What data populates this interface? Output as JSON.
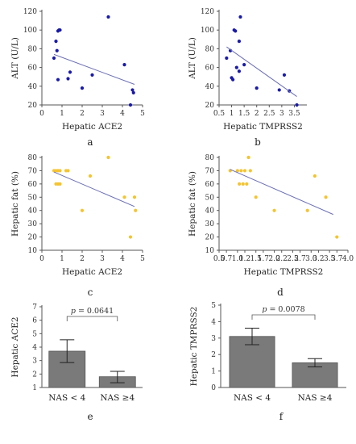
{
  "colors": {
    "blue": "#1a1aa8",
    "yellow": "#f4c430",
    "trend": "#6b6fb5",
    "bar": "#7a7a7a"
  },
  "chart_data": [
    {
      "panel": "a",
      "type": "scatter",
      "xlabel": "Hepatic ACE2",
      "ylabel": "ALT (U/L)",
      "xlim": [
        0,
        5
      ],
      "ylim": [
        20,
        120
      ],
      "xticks": [
        0,
        1,
        2,
        3,
        4,
        5
      ],
      "yticks": [
        20,
        40,
        60,
        80,
        100,
        120
      ],
      "x": [
        0.6,
        0.7,
        0.75,
        0.8,
        0.85,
        0.9,
        0.8,
        1.3,
        1.4,
        2.0,
        2.5,
        3.3,
        4.1,
        4.4,
        4.5,
        4.55
      ],
      "y": [
        70,
        88,
        78,
        99,
        100,
        100,
        47,
        48,
        55,
        38,
        52,
        114,
        63,
        20,
        36,
        33
      ],
      "trend": [
        [
          0.6,
          74
        ],
        [
          4.6,
          42
        ]
      ]
    },
    {
      "panel": "b",
      "type": "scatter",
      "xlabel": "Hepatic TMPRSS2",
      "ylabel": "ALT (U/L)",
      "xlim": [
        0.5,
        4.0
      ],
      "ylim": [
        20,
        120
      ],
      "xticks": [
        0.5,
        1.0,
        1.5,
        2.0,
        2.5,
        3.0,
        3.5
      ],
      "yticks": [
        20,
        40,
        60,
        80,
        100,
        120
      ],
      "x": [
        0.8,
        0.95,
        1.0,
        1.05,
        1.1,
        1.15,
        1.2,
        1.3,
        1.3,
        1.35,
        1.5,
        2.0,
        2.9,
        3.1,
        3.3,
        3.6
      ],
      "y": [
        70,
        78,
        49,
        47,
        100,
        99,
        60,
        88,
        56,
        114,
        63,
        38,
        36,
        52,
        35,
        20
      ],
      "trend": [
        [
          0.8,
          82
        ],
        [
          3.6,
          29
        ]
      ]
    },
    {
      "panel": "c",
      "type": "scatter",
      "xlabel": "Hepatic ACE2",
      "ylabel": "Hepatic fat (%)",
      "xlim": [
        0,
        5
      ],
      "ylim": [
        10,
        80
      ],
      "xticks": [
        0,
        1,
        2,
        3,
        4,
        5
      ],
      "yticks": [
        10,
        20,
        30,
        40,
        50,
        60,
        70,
        80
      ],
      "x": [
        0.6,
        0.7,
        0.8,
        0.9,
        0.7,
        0.8,
        0.9,
        1.2,
        1.3,
        2.0,
        2.4,
        3.3,
        4.1,
        4.4,
        4.6,
        4.65
      ],
      "y": [
        70,
        70,
        70,
        70,
        60,
        60,
        60,
        70,
        70,
        40,
        66,
        80,
        50,
        20,
        50,
        40
      ],
      "trend": [
        [
          0.6,
          69
        ],
        [
          4.6,
          43
        ]
      ]
    },
    {
      "panel": "d",
      "type": "scatter",
      "xlabel": "Hepatic TMPRSS2",
      "ylabel": "Hepatic fat (%)",
      "xlim": [
        0.5,
        4.0
      ],
      "ylim": [
        10,
        80
      ],
      "xticks": [
        0.5,
        0.7,
        1.0,
        1.2,
        1.5,
        1.7,
        2.0,
        2.2,
        2.5,
        2.7,
        3.0,
        3.2,
        3.5,
        3.7,
        4.0
      ],
      "xticklabels": [
        "0.5",
        "0.7",
        "1.0",
        "1.2",
        "1.5",
        "1.7",
        "2.0",
        "2.2",
        "2.5",
        "2.7",
        "3.0",
        "3.2",
        "3.5",
        "3.7",
        "4.0"
      ],
      "yticks": [
        10,
        20,
        30,
        40,
        50,
        60,
        70,
        80
      ],
      "x": [
        0.8,
        1.0,
        1.05,
        1.1,
        1.15,
        1.2,
        1.25,
        1.3,
        1.35,
        1.5,
        2.0,
        2.9,
        3.1,
        3.4,
        3.7
      ],
      "y": [
        70,
        70,
        60,
        70,
        60,
        70,
        60,
        80,
        70,
        50,
        40,
        40,
        66,
        50,
        20
      ],
      "trend": [
        [
          0.8,
          71
        ],
        [
          3.6,
          37
        ]
      ]
    },
    {
      "panel": "e",
      "type": "bar",
      "xlabel": "",
      "ylabel": "Hepatic ACE2",
      "categories": [
        "NAS < 4",
        "NAS ≥4"
      ],
      "values": [
        3.7,
        1.8
      ],
      "err_low": [
        2.85,
        1.35
      ],
      "err_high": [
        4.55,
        2.2
      ],
      "ylim": [
        1,
        7
      ],
      "yticks": [
        1,
        2,
        3,
        4,
        5,
        6,
        7
      ],
      "ptext": "p = 0.0641"
    },
    {
      "panel": "f",
      "type": "bar",
      "xlabel": "",
      "ylabel": "Hepatic TMPRSS2",
      "categories": [
        "NAS < 4",
        "NAS ≥4"
      ],
      "values": [
        3.1,
        1.5
      ],
      "err_low": [
        2.6,
        1.25
      ],
      "err_high": [
        3.6,
        1.75
      ],
      "ylim": [
        0,
        5
      ],
      "yticks": [
        0,
        1,
        2,
        3,
        4,
        5
      ],
      "ptext": "p = 0.0078"
    }
  ]
}
